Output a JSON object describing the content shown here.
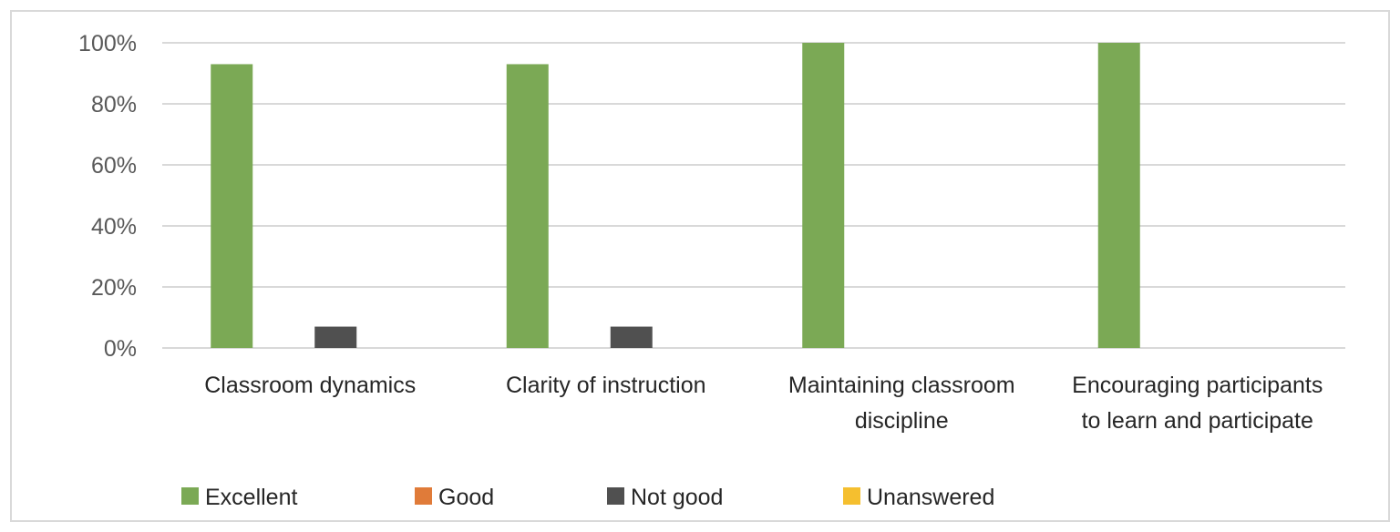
{
  "chart_data": {
    "type": "bar",
    "categories": [
      [
        "Classroom dynamics"
      ],
      [
        "Clarity of instruction"
      ],
      [
        "Maintaining classroom",
        "discipline"
      ],
      [
        "Encouraging participants",
        "to learn and participate"
      ]
    ],
    "series": [
      {
        "name": "Excellent",
        "color": "#7ba955",
        "values": [
          93,
          93,
          100,
          100
        ]
      },
      {
        "name": "Good",
        "color": "#e07b39",
        "values": [
          0,
          0,
          0,
          0
        ]
      },
      {
        "name": "Not good",
        "color": "#505050",
        "values": [
          7,
          7,
          0,
          0
        ]
      },
      {
        "name": "Unanswered",
        "color": "#f5bf2f",
        "values": [
          0,
          0,
          0,
          0
        ]
      }
    ],
    "y_ticks": [
      "0%",
      "20%",
      "40%",
      "60%",
      "80%",
      "100%"
    ],
    "ylim": [
      0,
      100
    ],
    "y_unit": "percent",
    "grid": true,
    "gridline_color": "#d9d9d9",
    "legend_position": "bottom"
  }
}
